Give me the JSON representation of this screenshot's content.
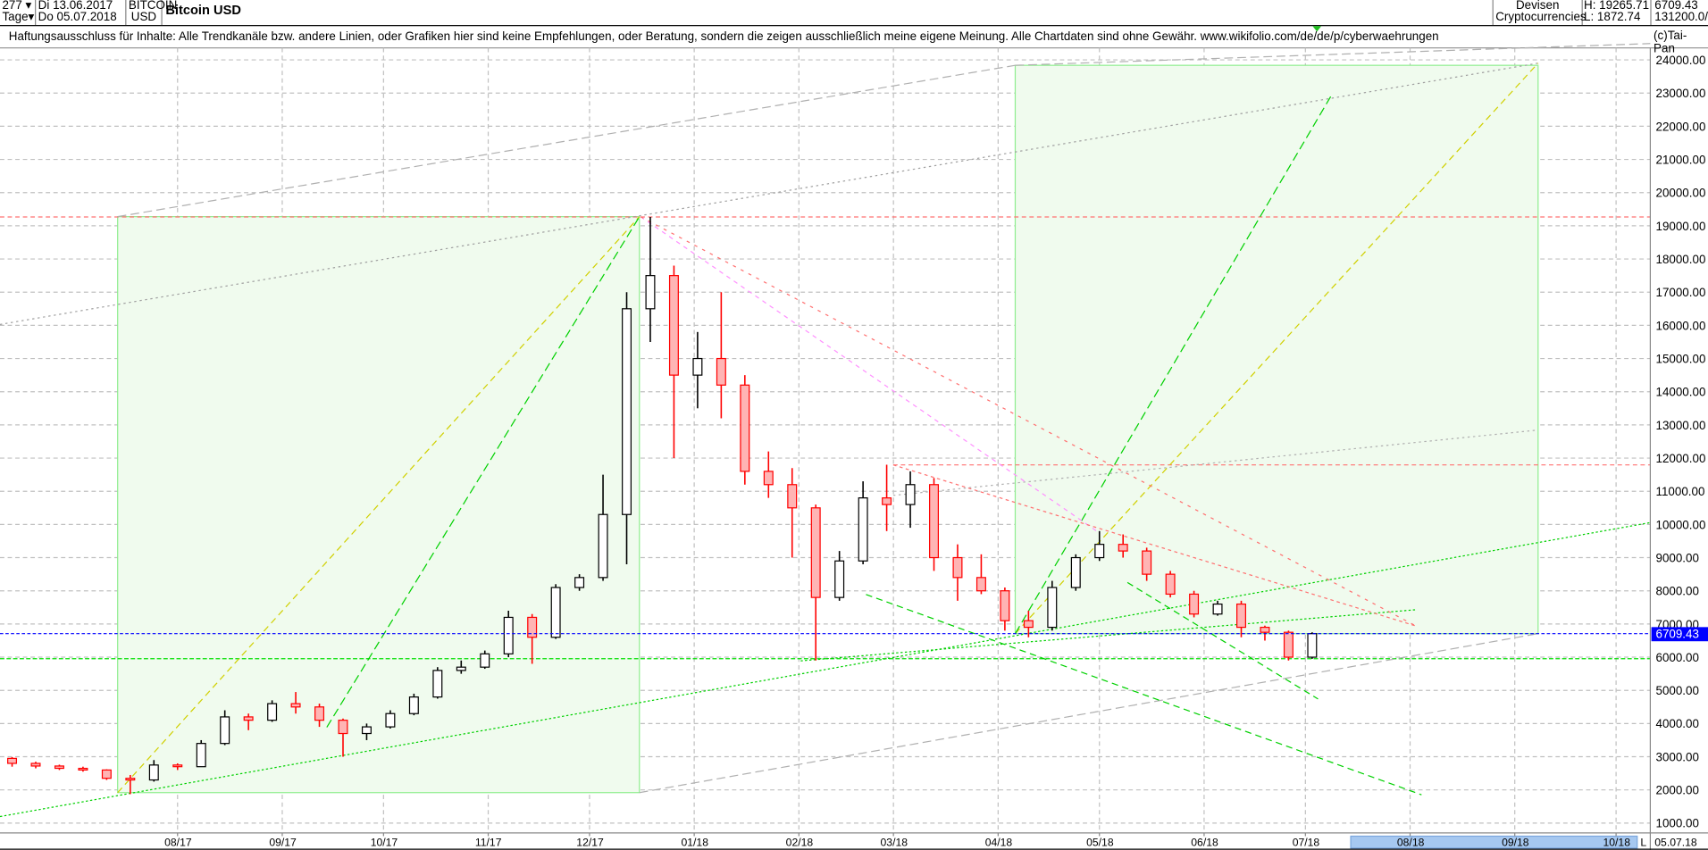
{
  "header": {
    "bars_count": "277",
    "period_unit": "Tage",
    "date_from": "Di 13.06.2017",
    "date_to": "Do 05.07.2018",
    "symbol_line1": "BITCOIN",
    "symbol_line2": "USD",
    "title": "Bitcoin USD",
    "category_line1": "Devisen",
    "category_line2": "Cryptocurrencies",
    "high": "H: 19265.71",
    "low": "L: 1872.74",
    "last": "6709.43",
    "volume": "131200.0/"
  },
  "disclaimer": "Haftungsausschluss für Inhalte: Alle Trendkanäle bzw. andere Linien, oder Grafiken hier sind keine Empfehlungen, oder Beratung, sondern die zeigen ausschließlich meine eigene Meinung. Alle Chartdaten sind ohne Gewähr.  www.wikifolio.com/de/de/p/cyberwaehrungen",
  "copyright": "(c)Tai-Pan",
  "footer": {
    "scroll_marker": "L",
    "end_date": "05.07.18"
  },
  "colors": {
    "up_body": "#ffffff",
    "up_line": "#000000",
    "down_body": "#ffb4b4",
    "down_line": "#ff0000",
    "last_price": "#0000ff",
    "box_fill": "#f0fbee",
    "box_stroke": "#90ee90",
    "scrollbar": "#a6c8f0"
  },
  "chart_data": {
    "type": "candlestick",
    "title": "Bitcoin USD",
    "ylim": [
      1000,
      24000
    ],
    "y_ticks": [
      "1000.00",
      "2000.00",
      "3000.00",
      "4000.00",
      "5000.00",
      "6000.00",
      "7000.00",
      "8000.00",
      "9000.00",
      "10000.00",
      "11000.00",
      "12000.00",
      "13000.00",
      "14000.00",
      "15000.00",
      "16000.00",
      "17000.00",
      "18000.00",
      "19000.00",
      "20000.00",
      "21000.00",
      "22000.00",
      "23000.00",
      "24000.00"
    ],
    "x_ticks": [
      {
        "label": "08/17",
        "date": "2017-08-01"
      },
      {
        "label": "09/17",
        "date": "2017-09-01"
      },
      {
        "label": "10/17",
        "date": "2017-10-01"
      },
      {
        "label": "11/17",
        "date": "2017-11-01"
      },
      {
        "label": "12/17",
        "date": "2017-12-01"
      },
      {
        "label": "01/18",
        "date": "2018-01-01"
      },
      {
        "label": "02/18",
        "date": "2018-02-01"
      },
      {
        "label": "03/18",
        "date": "2018-03-01"
      },
      {
        "label": "04/18",
        "date": "2018-04-01"
      },
      {
        "label": "05/18",
        "date": "2018-05-01"
      },
      {
        "label": "06/18",
        "date": "2018-06-01"
      },
      {
        "label": "07/18",
        "date": "2018-07-01"
      },
      {
        "label": "08/18",
        "date": "2018-08-01"
      },
      {
        "label": "09/18",
        "date": "2018-09-01"
      },
      {
        "label": "10/18",
        "date": "2018-10-01"
      }
    ],
    "last_price": 6709.43,
    "last_price_label": "6709.43",
    "grid": true,
    "ohlc_columns": [
      "date",
      "open",
      "high",
      "low",
      "close"
    ],
    "ohlc": [
      [
        "2017-06-13",
        2950,
        2990,
        2700,
        2800
      ],
      [
        "2017-06-20",
        2800,
        2850,
        2650,
        2720
      ],
      [
        "2017-06-27",
        2720,
        2760,
        2600,
        2650
      ],
      [
        "2017-07-04",
        2650,
        2700,
        2550,
        2600
      ],
      [
        "2017-07-11",
        2600,
        2620,
        2300,
        2350
      ],
      [
        "2017-07-18",
        2350,
        2450,
        1873,
        2300
      ],
      [
        "2017-07-25",
        2300,
        2900,
        2250,
        2750
      ],
      [
        "2017-08-01",
        2750,
        2800,
        2600,
        2700
      ],
      [
        "2017-08-08",
        2700,
        3500,
        2700,
        3400
      ],
      [
        "2017-08-15",
        3400,
        4400,
        3350,
        4200
      ],
      [
        "2017-08-22",
        4200,
        4300,
        3800,
        4100
      ],
      [
        "2017-08-29",
        4100,
        4700,
        4050,
        4600
      ],
      [
        "2017-09-05",
        4600,
        4950,
        4300,
        4500
      ],
      [
        "2017-09-12",
        4500,
        4600,
        3900,
        4100
      ],
      [
        "2017-09-19",
        4100,
        4150,
        3000,
        3700
      ],
      [
        "2017-09-26",
        3700,
        4000,
        3500,
        3900
      ],
      [
        "2017-10-03",
        3900,
        4400,
        3850,
        4300
      ],
      [
        "2017-10-10",
        4300,
        4900,
        4250,
        4800
      ],
      [
        "2017-10-17",
        4800,
        5700,
        4750,
        5600
      ],
      [
        "2017-10-24",
        5600,
        5900,
        5500,
        5700
      ],
      [
        "2017-10-31",
        5700,
        6200,
        5650,
        6100
      ],
      [
        "2017-11-07",
        6100,
        7400,
        6000,
        7200
      ],
      [
        "2017-11-14",
        7200,
        7300,
        5800,
        6600
      ],
      [
        "2017-11-21",
        6600,
        8200,
        6550,
        8100
      ],
      [
        "2017-11-28",
        8100,
        8500,
        8000,
        8400
      ],
      [
        "2017-12-05",
        8400,
        11500,
        8300,
        10300
      ],
      [
        "2017-12-12",
        10300,
        17000,
        8800,
        16500
      ],
      [
        "2017-12-19",
        16500,
        19266,
        15500,
        17500
      ],
      [
        "2017-12-26",
        17500,
        17800,
        12000,
        14500
      ],
      [
        "2018-01-02",
        14500,
        15800,
        13500,
        15000
      ],
      [
        "2018-01-09",
        15000,
        17000,
        13200,
        14200
      ],
      [
        "2018-01-16",
        14200,
        14500,
        11200,
        11600
      ],
      [
        "2018-01-23",
        11600,
        12200,
        10800,
        11200
      ],
      [
        "2018-01-30",
        11200,
        11700,
        9000,
        10500
      ],
      [
        "2018-02-06",
        10500,
        10600,
        5900,
        7800
      ],
      [
        "2018-02-13",
        7800,
        9200,
        7700,
        8900
      ],
      [
        "2018-02-20",
        8900,
        11300,
        8800,
        10800
      ],
      [
        "2018-02-27",
        10800,
        11800,
        9800,
        10600
      ],
      [
        "2018-03-06",
        10600,
        11600,
        9900,
        11200
      ],
      [
        "2018-03-13",
        11200,
        11400,
        8600,
        9000
      ],
      [
        "2018-03-20",
        9000,
        9400,
        7700,
        8400
      ],
      [
        "2018-03-27",
        8400,
        9100,
        7900,
        8000
      ],
      [
        "2018-04-03",
        8000,
        8100,
        6800,
        7100
      ],
      [
        "2018-04-10",
        7100,
        7400,
        6600,
        6900
      ],
      [
        "2018-04-17",
        6900,
        8300,
        6800,
        8100
      ],
      [
        "2018-04-24",
        8100,
        9100,
        8000,
        9000
      ],
      [
        "2018-05-01",
        9000,
        9800,
        8900,
        9400
      ],
      [
        "2018-05-08",
        9400,
        9700,
        9000,
        9200
      ],
      [
        "2018-05-15",
        9200,
        9300,
        8300,
        8500
      ],
      [
        "2018-05-22",
        8500,
        8600,
        7800,
        7900
      ],
      [
        "2018-05-29",
        7900,
        8000,
        7200,
        7300
      ],
      [
        "2018-06-05",
        7300,
        7700,
        7250,
        7600
      ],
      [
        "2018-06-12",
        7600,
        7700,
        6600,
        6900
      ],
      [
        "2018-06-19",
        6900,
        6950,
        6500,
        6750
      ],
      [
        "2018-06-26",
        6750,
        6800,
        5900,
        6000
      ],
      [
        "2018-07-03",
        6000,
        6750,
        5950,
        6709.43
      ]
    ]
  }
}
